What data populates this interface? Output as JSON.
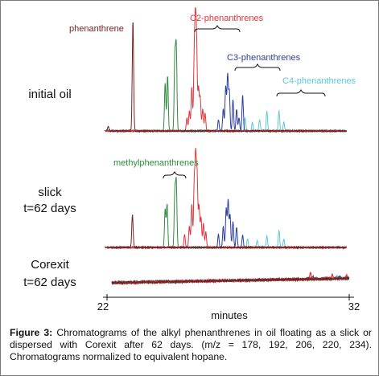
{
  "figure": {
    "caption_label": "Figure 3:",
    "caption_text": "Chromatograms of the alkyl phenanthrenes in oil floating as a slick or dispersed with Corexit after 62 days. (m/z = 178, 192, 206, 220, 234). Chromatograms normalized to equivalent hopane."
  },
  "chart_data": {
    "type": "line",
    "xlabel": "minutes",
    "xlim": [
      22,
      32
    ],
    "x_ticks": [
      "22",
      "32"
    ],
    "colors": {
      "phenanthrene": "#7a1f1f",
      "c1": "#2e8b3e",
      "c2": "#e0353b",
      "c3": "#2a3f9a",
      "c4": "#5bc8dc"
    },
    "panels": [
      {
        "label_lines": [
          "initial oil"
        ],
        "baseline": 0,
        "peaks": {
          "phenanthrene": [
            [
              23.07,
              100
            ],
            [
              22.05,
              4
            ]
          ],
          "c1": [
            [
              24.4,
              43
            ],
            [
              24.5,
              50
            ],
            [
              24.8,
              66
            ],
            [
              24.86,
              74
            ]
          ],
          "c2": [
            [
              25.3,
              12
            ],
            [
              25.4,
              18
            ],
            [
              25.5,
              40
            ],
            [
              25.6,
              60
            ],
            [
              25.65,
              85
            ],
            [
              25.7,
              70
            ],
            [
              25.78,
              38
            ],
            [
              25.85,
              30
            ],
            [
              25.95,
              20
            ],
            [
              26.05,
              16
            ]
          ],
          "c3": [
            [
              26.6,
              10
            ],
            [
              26.8,
              20
            ],
            [
              26.9,
              40
            ],
            [
              26.98,
              50
            ],
            [
              27.05,
              35
            ],
            [
              27.2,
              28
            ],
            [
              27.35,
              20
            ],
            [
              27.45,
              12
            ],
            [
              27.6,
              32
            ]
          ],
          "c4": [
            [
              27.7,
              12
            ],
            [
              28.0,
              8
            ],
            [
              28.3,
              10
            ],
            [
              28.6,
              18
            ],
            [
              29.1,
              12
            ],
            [
              29.3,
              8
            ],
            [
              29.1,
              6
            ]
          ]
        }
      },
      {
        "label_lines": [
          "slick",
          "t=62 days"
        ],
        "baseline": 0,
        "peaks": {
          "phenanthrene": [
            [
              23.05,
              38
            ]
          ],
          "c1": [
            [
              24.4,
              44
            ],
            [
              24.48,
              50
            ],
            [
              24.8,
              62
            ],
            [
              24.86,
              74
            ]
          ],
          "c2": [
            [
              25.2,
              15
            ],
            [
              25.4,
              25
            ],
            [
              25.5,
              50
            ],
            [
              25.6,
              72
            ],
            [
              25.66,
              100
            ],
            [
              25.72,
              80
            ],
            [
              25.8,
              48
            ],
            [
              25.88,
              35
            ],
            [
              25.98,
              28
            ],
            [
              26.08,
              18
            ]
          ],
          "c3": [
            [
              26.6,
              15
            ],
            [
              26.8,
              25
            ],
            [
              26.92,
              45
            ],
            [
              27.0,
              55
            ],
            [
              27.08,
              38
            ],
            [
              27.2,
              30
            ],
            [
              27.35,
              24
            ],
            [
              27.6,
              15
            ]
          ],
          "c4": [
            [
              27.8,
              10
            ],
            [
              28.2,
              8
            ],
            [
              28.6,
              14
            ],
            [
              29.1,
              20
            ],
            [
              29.3,
              10
            ]
          ]
        }
      },
      {
        "label_lines": [
          "Corexit",
          "t=62 days"
        ],
        "baseline": 0,
        "peaks": {
          "phenanthrene": [],
          "c1": [],
          "c2": [
            [
              30.4,
              8
            ],
            [
              31.3,
              6
            ],
            [
              31.9,
              4
            ]
          ],
          "c3": [
            [
              30.5,
              3
            ],
            [
              31.6,
              3
            ]
          ],
          "c4": [
            [
              31.5,
              3
            ]
          ]
        }
      }
    ],
    "annotations": [
      {
        "text": "phenanthrene",
        "series": "phenanthrene"
      },
      {
        "text": "C2-phenanthrenes",
        "series": "c2"
      },
      {
        "text": "C3-phenanthrenes",
        "series": "c3"
      },
      {
        "text": "C4-phenanthrenes",
        "series": "c4"
      },
      {
        "text": "methylphenanthrenes",
        "series": "c1"
      }
    ]
  }
}
